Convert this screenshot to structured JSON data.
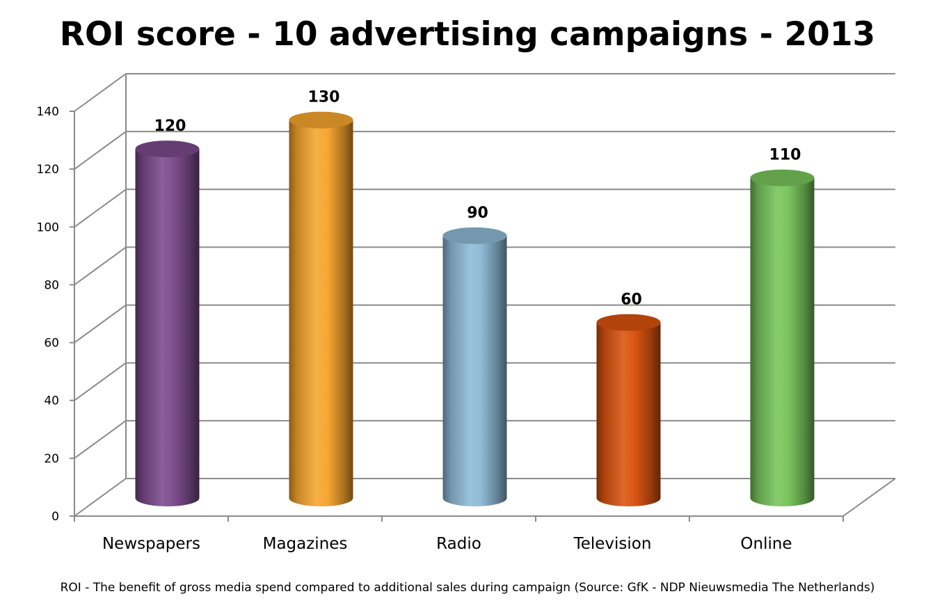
{
  "chart_data": {
    "type": "bar",
    "title": "ROI score - 10 advertising campaigns - 2013",
    "categories": [
      "Newspapers",
      "Magazines",
      "Radio",
      "Television",
      "Online"
    ],
    "values": [
      120,
      130,
      90,
      60,
      110
    ],
    "data_labels": [
      "120",
      "130",
      "90",
      "60",
      "110"
    ],
    "y_ticks": [
      0,
      20,
      40,
      60,
      80,
      100,
      120,
      140
    ],
    "ylim": [
      0,
      140
    ],
    "grid": true,
    "bar_shape": "3d-cylinder",
    "colors": [
      "#7B4A8C",
      "#F6A52E",
      "#8DBAD6",
      "#D9520E",
      "#77C45A"
    ],
    "footnote": "ROI -  The benefit of gross media spend  compared to additional sales during campaign (Source: GfK - NDP Nieuwsmedia The Netherlands)"
  }
}
